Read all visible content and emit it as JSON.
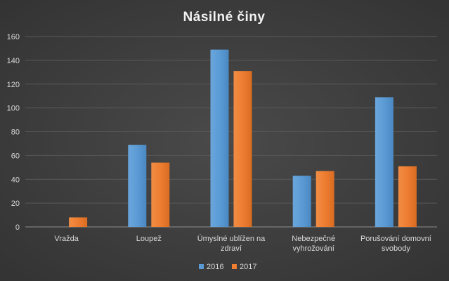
{
  "chart_data": {
    "type": "bar",
    "title": "Násilné  činy",
    "xlabel": "",
    "ylabel": "",
    "ylim": [
      0,
      160
    ],
    "yticks": [
      "0",
      "20",
      "40",
      "60",
      "80",
      "100",
      "120",
      "140",
      "160"
    ],
    "grid": true,
    "legend_position": "bottom",
    "categories": [
      [
        "Vražda"
      ],
      [
        "Loupež"
      ],
      [
        "Úmyslné ublížen na",
        "zdraví"
      ],
      [
        "Nebezpečné",
        "vyhrožování"
      ],
      [
        "Porušování domovní",
        "svobody"
      ]
    ],
    "series": [
      {
        "name": "2016",
        "color": "#5b9bd5",
        "values": [
          0,
          69,
          149,
          43,
          109
        ]
      },
      {
        "name": "2017",
        "color": "#ed7d31",
        "values": [
          8,
          54,
          131,
          47,
          51
        ]
      }
    ]
  }
}
